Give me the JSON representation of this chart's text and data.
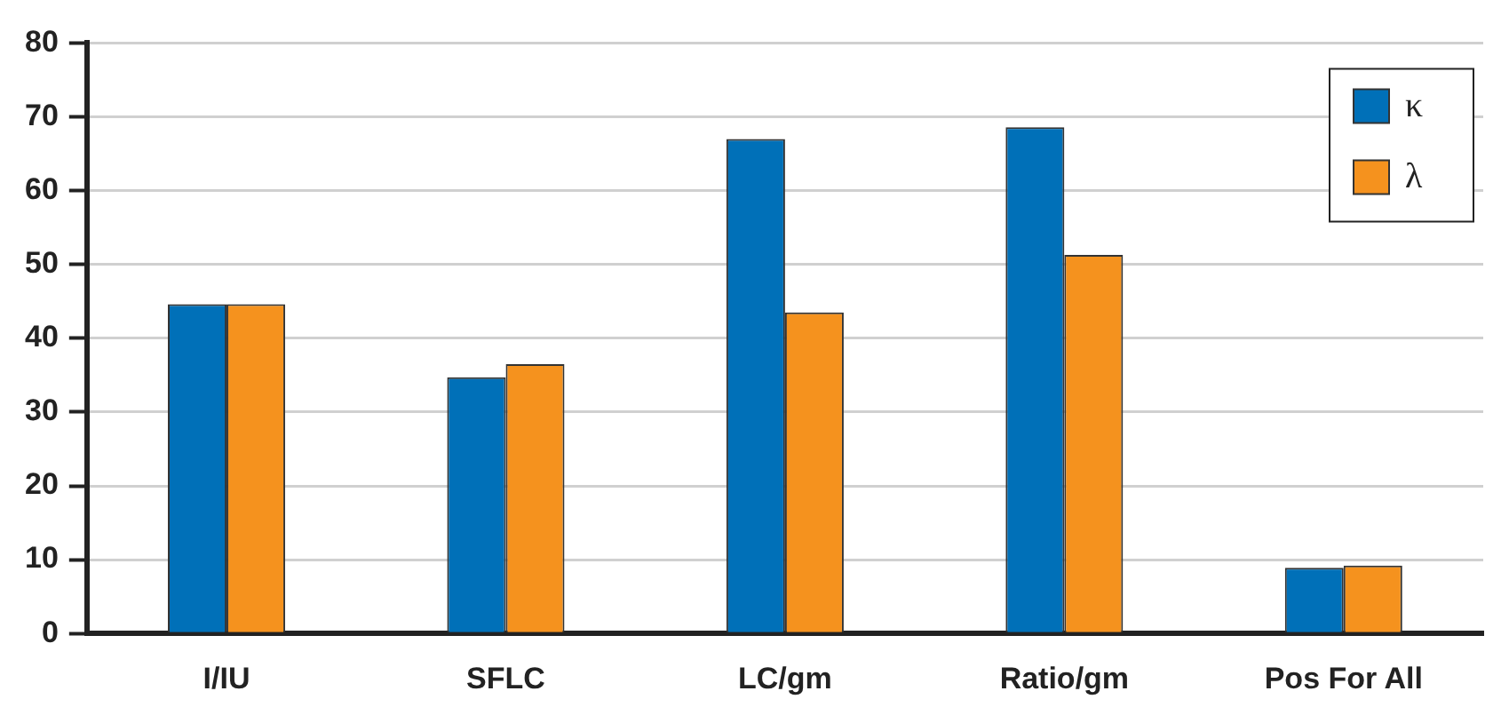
{
  "chart_data": {
    "type": "bar",
    "categories": [
      "I/IU",
      "SFLC",
      "LC/gm",
      "Ratio/gm",
      "Pos For All"
    ],
    "series": [
      {
        "name": "κ",
        "color": "#0070b8",
        "values": [
          44.6,
          34.7,
          67.0,
          68.6,
          8.9
        ]
      },
      {
        "name": "λ",
        "color": "#f5921e",
        "values": [
          44.6,
          36.5,
          43.5,
          51.3,
          9.2
        ]
      }
    ],
    "ylim": [
      0,
      80
    ],
    "yticks": [
      0,
      10,
      20,
      30,
      40,
      50,
      60,
      70,
      80
    ],
    "grid": "y",
    "legend": "top right"
  }
}
